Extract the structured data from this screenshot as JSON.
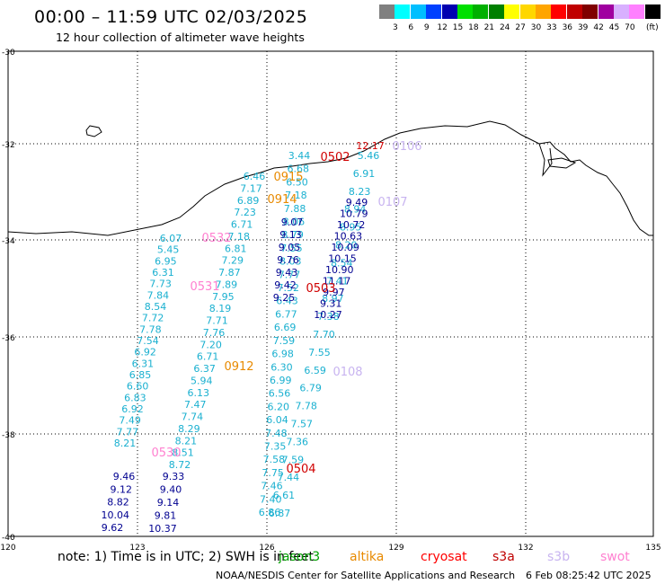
{
  "header": {
    "title": "00:00 – 11:59 UTC 02/03/2025",
    "subtitle": "12 hour collection of altimeter wave heights"
  },
  "legend": {
    "unit": "(ft)",
    "bins": [
      {
        "label": "",
        "color": "#808080"
      },
      {
        "label": "3",
        "color": "#00ffff"
      },
      {
        "label": "6",
        "color": "#00bfff"
      },
      {
        "label": "9",
        "color": "#0040ff"
      },
      {
        "label": "12",
        "color": "#0000b0"
      },
      {
        "label": "15",
        "color": "#00e000"
      },
      {
        "label": "18",
        "color": "#00b000"
      },
      {
        "label": "21",
        "color": "#008000"
      },
      {
        "label": "24",
        "color": "#ffff00"
      },
      {
        "label": "27",
        "color": "#ffd700"
      },
      {
        "label": "30",
        "color": "#ffa500"
      },
      {
        "label": "33",
        "color": "#ff0000"
      },
      {
        "label": "36",
        "color": "#c00000"
      },
      {
        "label": "39",
        "color": "#800000"
      },
      {
        "label": "42",
        "color": "#a000a0"
      },
      {
        "label": "45",
        "color": "#d8b0ff"
      },
      {
        "label": "70",
        "color": "#ff80ff"
      },
      {
        "label": "",
        "color": "#000000"
      }
    ]
  },
  "axes": {
    "lat_labels": [
      "-30",
      "-32",
      "-34",
      "-36",
      "-38",
      "-40"
    ],
    "lon_labels": [
      "120",
      "123",
      "126",
      "129",
      "132",
      "135"
    ]
  },
  "tracks": [
    {
      "name": "jason3 west",
      "color": "#1ab0d0",
      "values": [
        "6.07",
        "5.45",
        "6.95",
        "6.31",
        "7.73",
        "7.84",
        "8.54",
        "7.72",
        "7.78",
        "7.54",
        "6.92",
        "6.31",
        "6.85",
        "6.60",
        "6.83",
        "6.92",
        "7.49",
        "7.77",
        "8.21"
      ]
    },
    {
      "name": "jason3 west dark",
      "color": "#000090",
      "values": [
        "9.46",
        "9.12",
        "8.82",
        "10.04",
        "9.62"
      ]
    },
    {
      "name": "jason3 second",
      "color": "#1ab0d0",
      "values": [
        "6.46",
        "7.17",
        "6.89",
        "7.23",
        "6.71",
        "7.18",
        "6.81",
        "7.29",
        "7.87",
        "7.89",
        "7.95",
        "8.19",
        "7.71",
        "7.76",
        "7.20",
        "6.71",
        "6.37",
        "5.94",
        "6.13",
        "7.47",
        "7.74",
        "8.29",
        "8.21",
        "8.51",
        "8.72"
      ]
    },
    {
      "name": "jason3 second dark",
      "color": "#000090",
      "values": [
        "9.33",
        "9.40",
        "9.14",
        "9.81",
        "10.37"
      ]
    },
    {
      "name": "track middle",
      "color": "#1ab0d0",
      "values": [
        "3.44",
        "6.68",
        "6.50",
        "7.18",
        "7.88",
        "8.06",
        "8.79",
        "7.55",
        "8.03",
        "7.77",
        "7.52",
        "6.43",
        "6.77",
        "6.69",
        "7.59",
        "6.98",
        "6.30",
        "6.99",
        "6.56",
        "6.20",
        "6.04",
        "7.48",
        "7.35",
        "7.58",
        "7.75",
        "7.46",
        "7.40",
        "6.86"
      ]
    },
    {
      "name": "track middle dark",
      "color": "#000090",
      "values": [
        "9.07",
        "9.13",
        "9.05",
        "9.76",
        "9.43",
        "9.42",
        "9.25"
      ]
    },
    {
      "name": "track east cyan",
      "color": "#1ab0d0",
      "values": [
        "5.46",
        "6.91",
        "8.23",
        "8.94",
        "8.95",
        "8.20",
        "8.54",
        "7.41",
        "8.97",
        "7.38",
        "7.70",
        "7.55",
        "6.59",
        "6.79",
        "7.78",
        "7.57",
        "7.36",
        "7.59",
        "7.44",
        "6.61",
        "6.87"
      ]
    },
    {
      "name": "track east dark",
      "color": "#000090",
      "values": [
        "9.49",
        "10.79",
        "10.72",
        "10.63",
        "10.09",
        "10.15",
        "10.90",
        "11.17",
        "9.97",
        "9.31",
        "10.27"
      ]
    },
    {
      "name": "coast value",
      "color": "#d00000",
      "values": [
        "12.17"
      ]
    }
  ],
  "times": [
    {
      "label": "0502",
      "color": "#d00000"
    },
    {
      "label": "0106",
      "color": "#c8b4f0"
    },
    {
      "label": "0915",
      "color": "#e88a00"
    },
    {
      "label": "0914",
      "color": "#e88a00"
    },
    {
      "label": "0107",
      "color": "#c8b4f0"
    },
    {
      "label": "0532",
      "color": "#ff80d0"
    },
    {
      "label": "0531",
      "color": "#ff80d0"
    },
    {
      "label": "0503",
      "color": "#d00000"
    },
    {
      "label": "0912",
      "color": "#e88a00"
    },
    {
      "label": "0108",
      "color": "#c8b4f0"
    },
    {
      "label": "0530",
      "color": "#ff80d0"
    },
    {
      "label": "0504",
      "color": "#d00000"
    }
  ],
  "footer": {
    "note": "note:  1) Time is in UTC;  2) SWH is in feet",
    "satellites": [
      {
        "name": "jason3",
        "color": "#00a000"
      },
      {
        "name": "altika",
        "color": "#e88a00"
      },
      {
        "name": "cryosat",
        "color": "#ff0000"
      },
      {
        "name": "s3a",
        "color": "#c00000"
      },
      {
        "name": "s3b",
        "color": "#c8b4f0"
      },
      {
        "name": "swot",
        "color": "#ff80d0"
      }
    ],
    "credit": "NOAA/NESDIS Center for Satellite Applications and Research",
    "timestamp": "6 Feb 08:25:42 UTC 2025"
  }
}
